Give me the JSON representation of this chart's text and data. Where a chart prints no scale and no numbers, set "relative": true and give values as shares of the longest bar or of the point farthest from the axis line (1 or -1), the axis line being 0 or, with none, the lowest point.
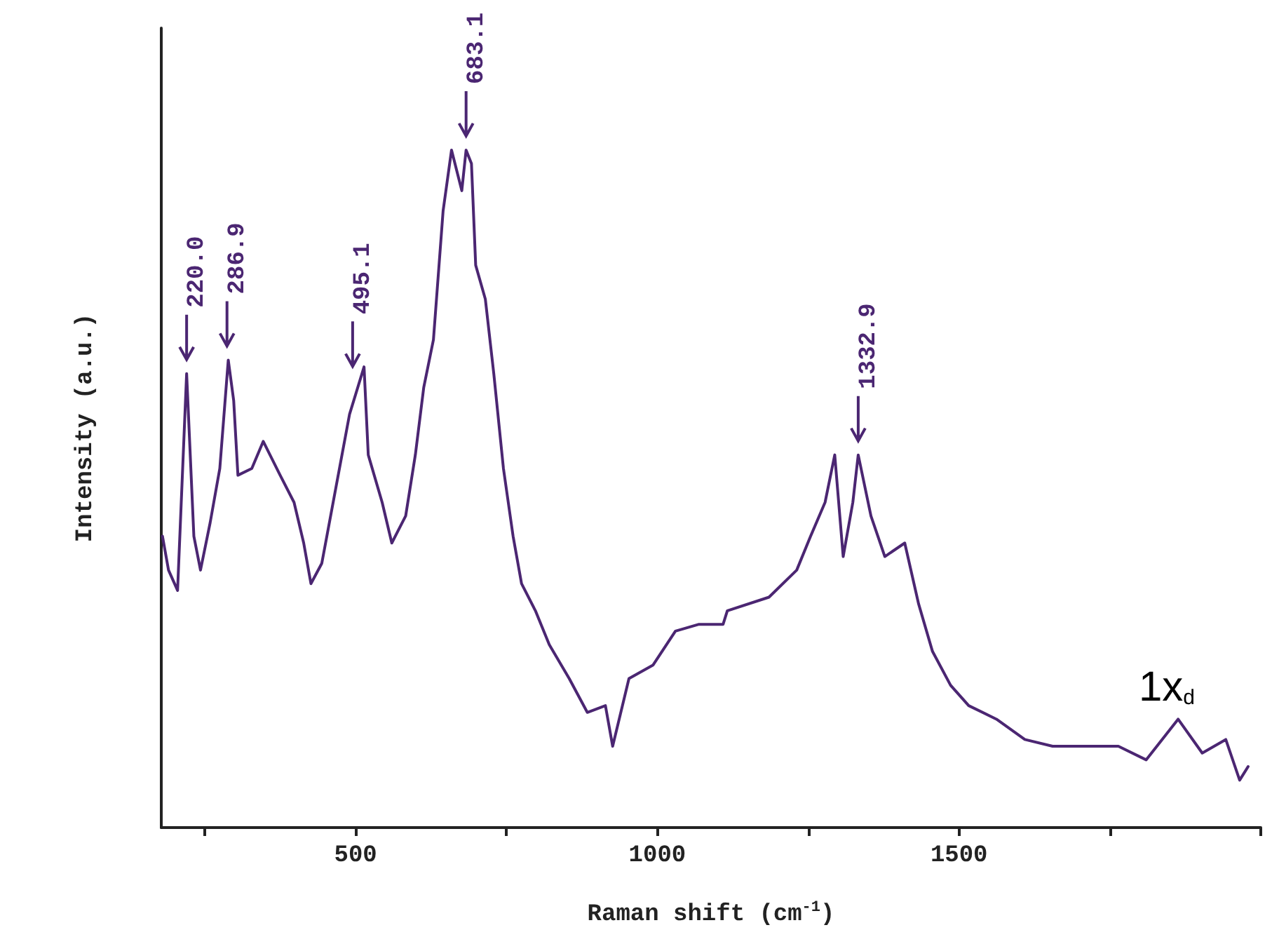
{
  "chart_data": {
    "type": "line",
    "relative": true,
    "xlabel": "Raman shift (cm$^{-1}$)",
    "ylabel": "Intensity (a.u.)",
    "xlim": [
      178,
      2000
    ],
    "xticks": [
      {
        "value": 250,
        "label": null
      },
      500,
      {
        "value": 750,
        "label": null
      },
      1000,
      {
        "value": 1250,
        "label": null
      },
      1500,
      {
        "value": 1750,
        "label": null
      },
      {
        "value": 2000,
        "label": null
      }
    ],
    "grid": false,
    "marker": "none",
    "line_style": "solid",
    "series": [
      {
        "color": "#4b2672",
        "x": [
          180,
          190,
          205,
          220,
          232,
          243,
          259,
          275,
          289,
          298,
          305,
          328,
          347,
          375,
          398,
          414,
          426,
          444,
          467,
          490,
          514,
          521,
          544,
          560,
          583,
          599,
          613,
          629,
          645,
          659,
          676,
          683.1,
          692,
          699,
          715,
          729,
          745,
          761,
          775,
          798,
          821,
          854,
          884,
          914,
          926,
          953,
          993,
          1030,
          1069,
          1109,
          1116,
          1185,
          1231,
          1254,
          1278,
          1294,
          1308,
          1324,
          1332.9,
          1354,
          1377,
          1410,
          1433,
          1456,
          1486,
          1516,
          1562,
          1609,
          1655,
          1701,
          1764,
          1810,
          1863,
          1903,
          1942,
          1965,
          1979
        ],
        "values": [
          0.43,
          0.38,
          0.35,
          0.67,
          0.43,
          0.38,
          0.45,
          0.53,
          0.69,
          0.63,
          0.52,
          0.53,
          0.57,
          0.52,
          0.48,
          0.42,
          0.36,
          0.39,
          0.5,
          0.61,
          0.68,
          0.55,
          0.48,
          0.42,
          0.46,
          0.55,
          0.65,
          0.72,
          0.91,
          1.0,
          0.94,
          1.0,
          0.98,
          0.83,
          0.78,
          0.67,
          0.53,
          0.43,
          0.36,
          0.32,
          0.27,
          0.22,
          0.17,
          0.18,
          0.12,
          0.22,
          0.24,
          0.29,
          0.3,
          0.3,
          0.32,
          0.34,
          0.38,
          0.43,
          0.48,
          0.55,
          0.4,
          0.48,
          0.55,
          0.46,
          0.4,
          0.42,
          0.33,
          0.26,
          0.21,
          0.18,
          0.16,
          0.13,
          0.12,
          0.12,
          0.12,
          0.1,
          0.16,
          0.11,
          0.13,
          0.07,
          0.09
        ]
      }
    ],
    "annotations": [
      {
        "text": "220.0",
        "x": 220,
        "y": 0.67
      },
      {
        "text": "286.9",
        "x": 286.9,
        "y": 0.69
      },
      {
        "text": "495.1",
        "x": 495.1,
        "y": 0.66
      },
      {
        "text": "683.1",
        "x": 683.1,
        "y": 1.0
      },
      {
        "text": "1332.9",
        "x": 1332.9,
        "y": 0.55
      },
      "1x$_{d}$"
    ]
  }
}
